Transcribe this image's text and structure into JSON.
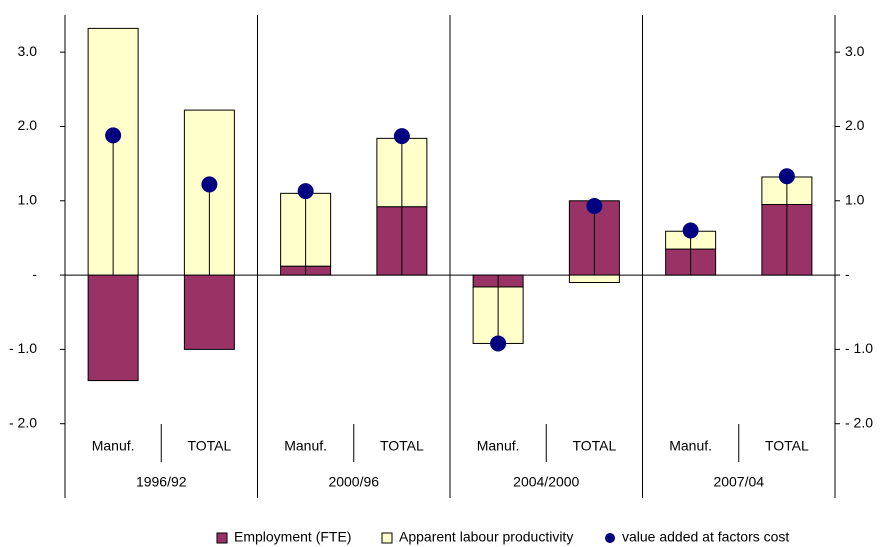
{
  "chart_data": {
    "type": "bar",
    "categories": [
      "Manuf.",
      "TOTAL",
      "Manuf.",
      "TOTAL",
      "Manuf.",
      "TOTAL",
      "Manuf.",
      "TOTAL"
    ],
    "groups": [
      "1996/92",
      "2000/96",
      "2004/2000",
      "2007/04"
    ],
    "series": [
      {
        "name": "Employment (FTE)",
        "type": "bar",
        "color": "#993366",
        "values": [
          -1.42,
          -1.0,
          0.12,
          0.92,
          -0.16,
          1.0,
          0.35,
          0.95
        ]
      },
      {
        "name": "Apparent labour productivity",
        "type": "bar",
        "color": "#ffffcc",
        "values": [
          3.32,
          2.22,
          0.98,
          0.92,
          -0.76,
          -0.1,
          0.24,
          0.37
        ]
      },
      {
        "name": "value added at factors cost",
        "type": "scatter",
        "color": "#000080",
        "values": [
          1.88,
          1.22,
          1.13,
          1.87,
          -0.92,
          0.93,
          0.6,
          1.33
        ]
      }
    ],
    "ylim": [
      -3,
      3.5
    ],
    "yticks": [
      {
        "value": -2,
        "label": "- 2.0"
      },
      {
        "value": -1,
        "label": "- 1.0"
      },
      {
        "value": 0,
        "label": "-"
      },
      {
        "value": 1,
        "label": "1.0"
      },
      {
        "value": 2,
        "label": "2.0"
      },
      {
        "value": 3,
        "label": "3.0"
      }
    ],
    "stacked": true
  }
}
